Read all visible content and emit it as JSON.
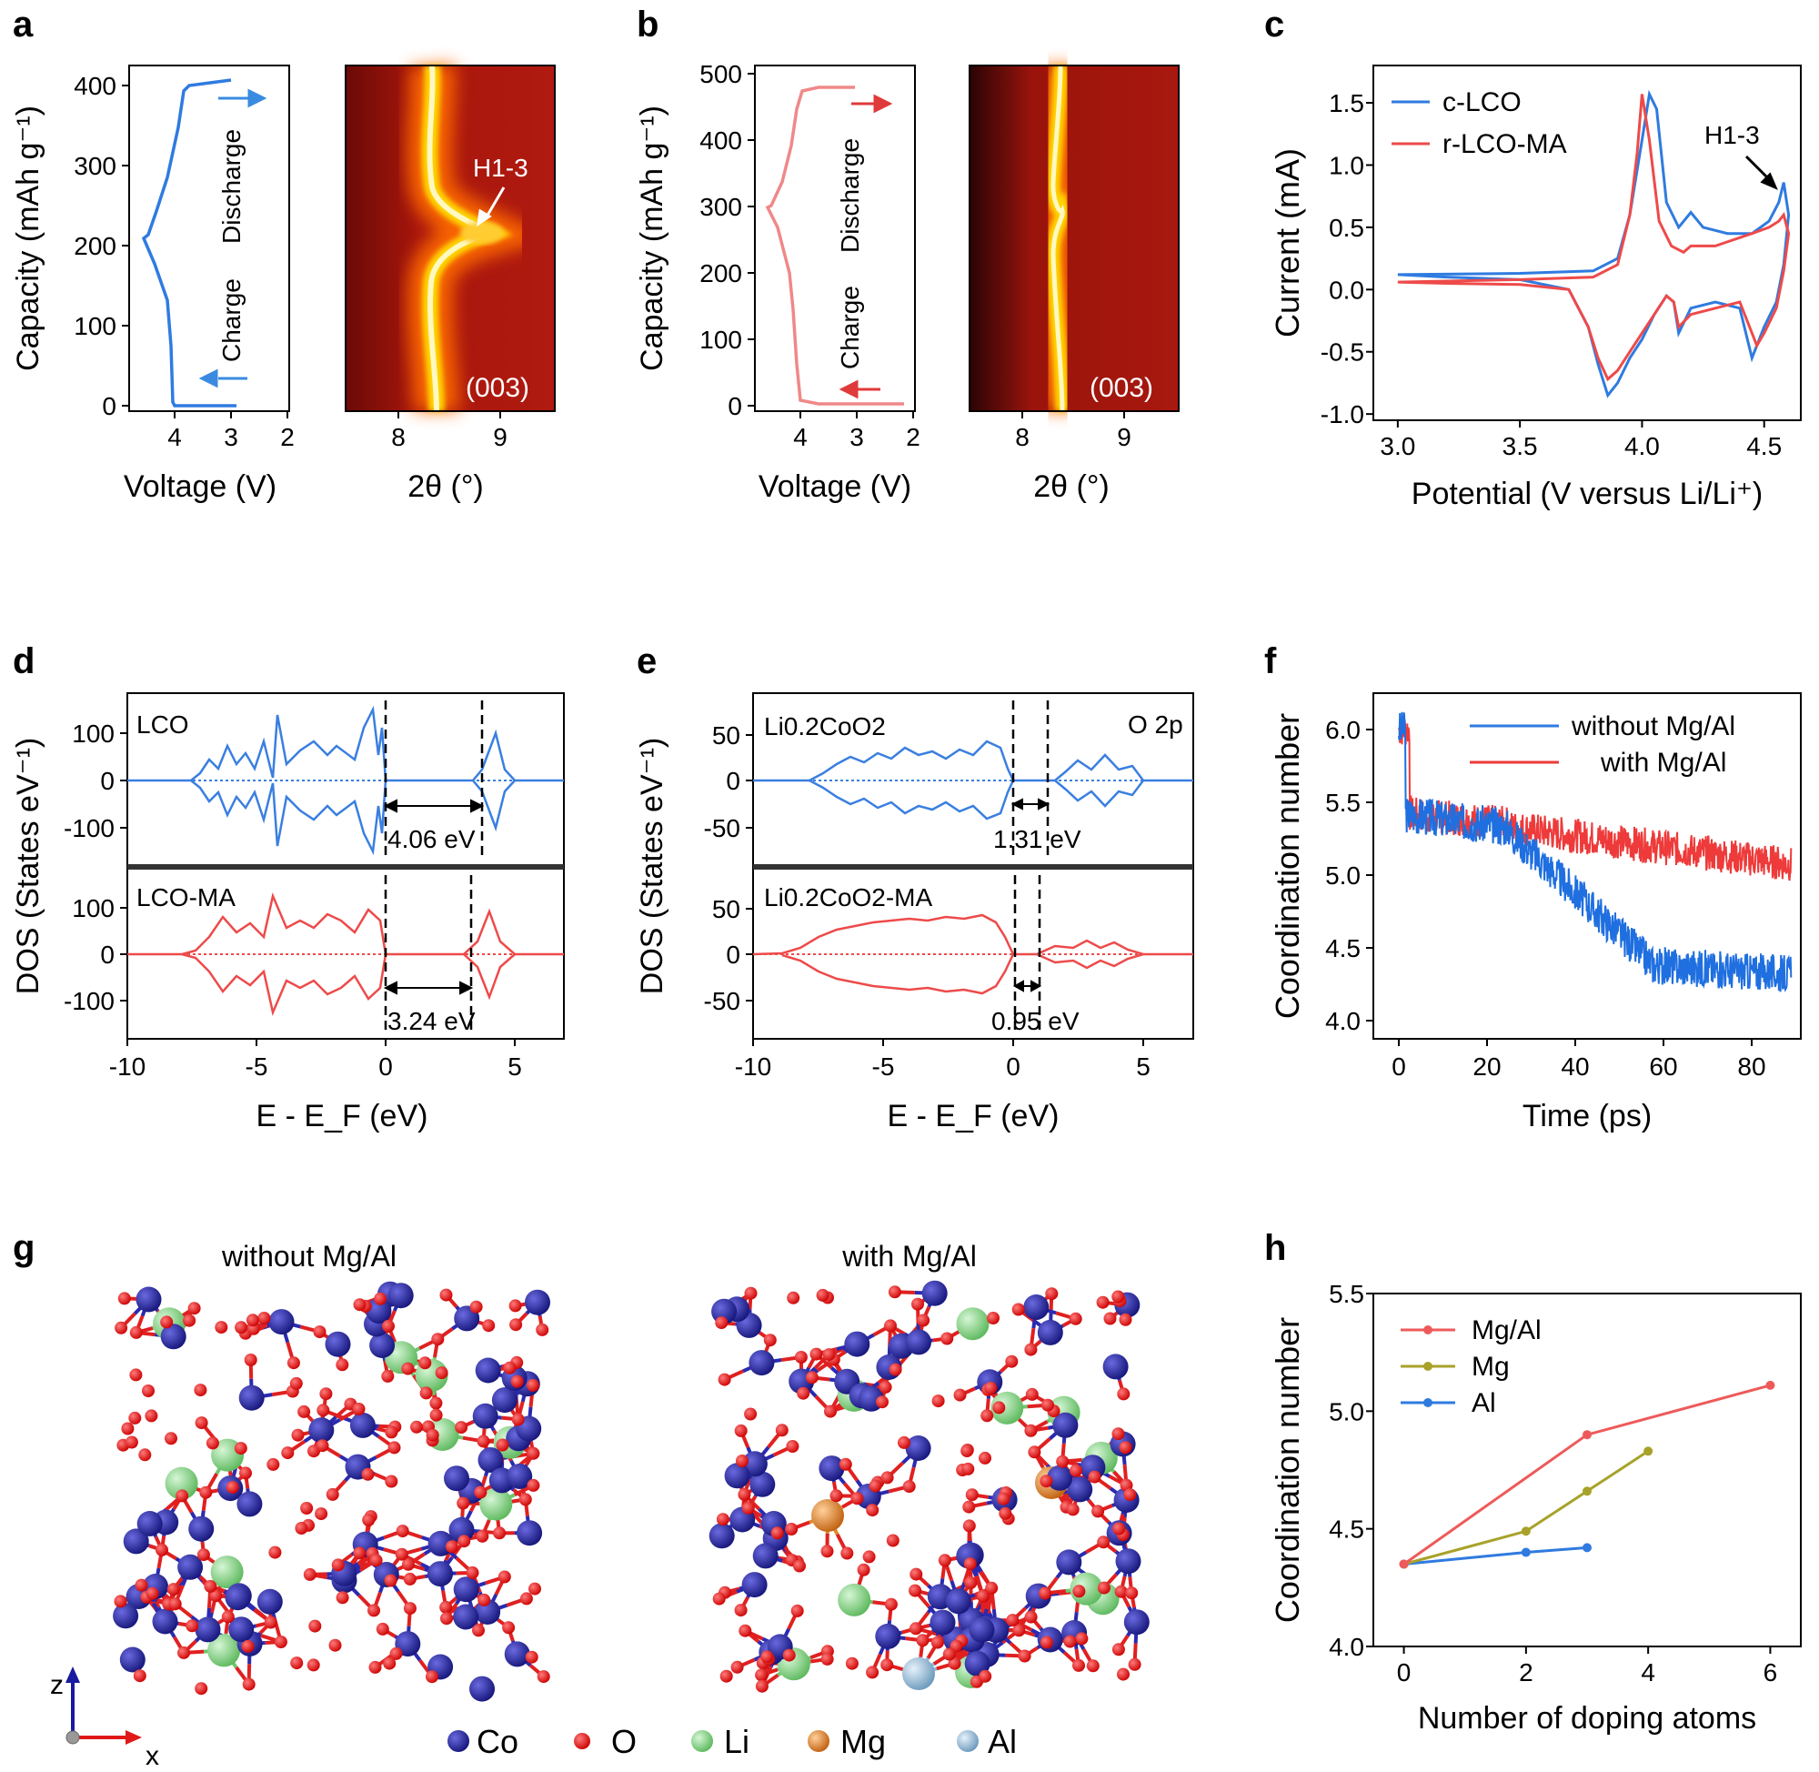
{
  "panel_labels": [
    "a",
    "b",
    "c",
    "d",
    "e",
    "f",
    "g",
    "h"
  ],
  "colors": {
    "blue": "#2f7be0",
    "red": "#ee4a4a",
    "pink": "#f08080",
    "olive": "#a8a22a",
    "co": "#23239a",
    "o": "#e01818",
    "li": "#88d888",
    "mg": "#e88a2a",
    "al": "#8fb8d8"
  },
  "panel_a": {
    "ylabel": "Capacity (mAh g⁻¹)",
    "xlabel": "Voltage (V)",
    "x_ticks": [
      "4",
      "3",
      "2"
    ],
    "y_ticks": [
      "0",
      "100",
      "200",
      "300",
      "400"
    ],
    "charge_label": "Charge",
    "discharge_label": "Discharge",
    "map_xlabel": "2θ (°)",
    "map_x_ticks": [
      "8",
      "9"
    ],
    "map_peak_label": "(003)",
    "annotation": "H1-3"
  },
  "panel_b": {
    "ylabel": "Capacity (mAh g⁻¹)",
    "xlabel": "Voltage (V)",
    "x_ticks": [
      "4",
      "3",
      "2"
    ],
    "y_ticks": [
      "0",
      "100",
      "200",
      "300",
      "400",
      "500"
    ],
    "charge_label": "Charge",
    "discharge_label": "Discharge",
    "map_xlabel": "2θ (°)",
    "map_x_ticks": [
      "8",
      "9"
    ],
    "map_peak_label": "(003)"
  },
  "panel_c": {
    "xlabel": "Potential (V versus Li/Li⁺)",
    "ylabel": "Current (mA)",
    "x_ticks": [
      "3.0",
      "3.5",
      "4.0",
      "4.5"
    ],
    "y_ticks": [
      "-1.0",
      "-0.5",
      "0.0",
      "0.5",
      "1.0",
      "1.5"
    ],
    "legend": [
      "c-LCO",
      "r-LCO-MA"
    ],
    "annotation": "H1-3"
  },
  "panel_d": {
    "ylabel": "DOS (States eV⁻¹)",
    "xlabel": "E - E_F (eV)",
    "x_ticks": [
      "-10",
      "-5",
      "0",
      "5"
    ],
    "y_ticks": [
      "-100",
      "0",
      "100"
    ],
    "top_label": "LCO",
    "bottom_label": "LCO-MA",
    "top_gap": "4.06 eV",
    "bottom_gap": "3.24 eV"
  },
  "panel_e": {
    "ylabel": "DOS (States eV⁻¹)",
    "xlabel": "E - E_F (eV)",
    "x_ticks": [
      "-10",
      "-5",
      "0",
      "5"
    ],
    "y_ticks": [
      "-50",
      "0",
      "50"
    ],
    "top_label": "Li0.2CoO2",
    "bottom_label": "Li0.2CoO2-MA",
    "orbital_label": "O 2p",
    "top_gap": "1.31 eV",
    "bottom_gap": "0.95 eV"
  },
  "panel_f": {
    "xlabel": "Time (ps)",
    "ylabel": "Coordination number",
    "x_ticks": [
      "0",
      "20",
      "40",
      "60",
      "80"
    ],
    "y_ticks": [
      "4.0",
      "4.5",
      "5.0",
      "5.5",
      "6.0"
    ],
    "legend": [
      "without Mg/Al",
      "with Mg/Al"
    ]
  },
  "panel_g": {
    "left_title": "without Mg/Al",
    "right_title": "with Mg/Al",
    "axis_z": "z",
    "axis_x": "x",
    "legend": [
      "Co",
      "O",
      "Li",
      "Mg",
      "Al"
    ]
  },
  "chart_data": [
    {
      "type": "line",
      "panel": "h",
      "xlabel": "Number of doping atoms",
      "ylabel": "Coordination number",
      "xlim": [
        -0.5,
        6.5
      ],
      "ylim": [
        4.0,
        5.5
      ],
      "x_ticks": [
        "0",
        "2",
        "4",
        "6"
      ],
      "y_ticks": [
        "4.0",
        "4.5",
        "5.0",
        "5.5"
      ],
      "series": [
        {
          "name": "Mg/Al",
          "color": "#ee5a5a",
          "x": [
            0,
            3,
            6
          ],
          "y": [
            4.35,
            4.9,
            5.11
          ]
        },
        {
          "name": "Mg",
          "color": "#a8a22a",
          "x": [
            0,
            2,
            3,
            4
          ],
          "y": [
            4.35,
            4.49,
            4.66,
            4.83
          ]
        },
        {
          "name": "Al",
          "color": "#2f7be0",
          "x": [
            0,
            2,
            3
          ],
          "y": [
            4.35,
            4.4,
            4.42
          ]
        }
      ]
    },
    {
      "type": "line",
      "panel": "c",
      "xlim": [
        2.9,
        4.65
      ],
      "ylim": [
        -1.05,
        1.8
      ],
      "series": [
        {
          "name": "c-LCO",
          "x": [
            3.0,
            3.5,
            3.8,
            3.9,
            3.95,
            4.0,
            4.03,
            4.06,
            4.1,
            4.15,
            4.2,
            4.25,
            4.35,
            4.45,
            4.52,
            4.56,
            4.58,
            4.6,
            4.58,
            4.55,
            4.5,
            4.45,
            4.4,
            4.3,
            4.2,
            4.15,
            4.13,
            4.1,
            4.05,
            4.0,
            3.95,
            3.9,
            3.86,
            3.82,
            3.78,
            3.7,
            3.5,
            3.2,
            3.0
          ],
          "y": [
            0.12,
            0.13,
            0.15,
            0.25,
            0.6,
            1.2,
            1.57,
            1.45,
            0.7,
            0.5,
            0.62,
            0.5,
            0.45,
            0.45,
            0.55,
            0.7,
            0.86,
            0.6,
            0.2,
            -0.1,
            -0.3,
            -0.55,
            -0.15,
            -0.1,
            -0.15,
            -0.35,
            -0.1,
            -0.05,
            -0.2,
            -0.4,
            -0.55,
            -0.75,
            -0.85,
            -0.6,
            -0.3,
            0.0,
            0.08,
            0.1,
            0.12
          ]
        },
        {
          "name": "r-LCO-MA",
          "x": [
            3.0,
            3.5,
            3.8,
            3.9,
            3.95,
            3.98,
            4.0,
            4.03,
            4.07,
            4.12,
            4.17,
            4.2,
            4.3,
            4.45,
            4.52,
            4.56,
            4.58,
            4.6,
            4.58,
            4.55,
            4.5,
            4.47,
            4.4,
            4.3,
            4.2,
            4.15,
            4.13,
            4.1,
            4.05,
            4.0,
            3.95,
            3.9,
            3.86,
            3.82,
            3.78,
            3.7,
            3.5,
            3.2,
            3.0
          ],
          "y": [
            0.06,
            0.08,
            0.1,
            0.2,
            0.6,
            1.1,
            1.57,
            1.2,
            0.55,
            0.35,
            0.3,
            0.35,
            0.35,
            0.45,
            0.5,
            0.55,
            0.6,
            0.45,
            0.15,
            -0.15,
            -0.35,
            -0.45,
            -0.1,
            -0.15,
            -0.2,
            -0.3,
            -0.1,
            -0.05,
            -0.2,
            -0.35,
            -0.5,
            -0.65,
            -0.72,
            -0.55,
            -0.3,
            0.0,
            0.04,
            0.05,
            0.06
          ]
        }
      ]
    }
  ]
}
